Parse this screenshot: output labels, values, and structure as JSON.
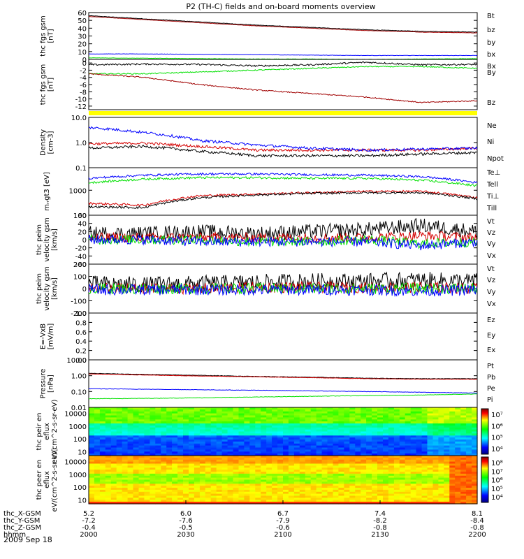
{
  "title": "P2 (TH-C) fields and on-board moments overview",
  "date": "2009 Sep 18",
  "colors": {
    "black": "#000000",
    "red": "#d40000",
    "green": "#00e000",
    "blue": "#0000ff",
    "darkred": "#a00000",
    "yellow": "#ffff00"
  },
  "colorbars": [
    {
      "ticks": [
        "10⁷",
        "10⁶",
        "10⁵",
        "10⁴"
      ]
    },
    {
      "ticks": [
        "10⁸",
        "10⁷",
        "10⁶",
        "10⁵",
        "10⁴"
      ]
    }
  ],
  "orbit": {
    "labels": [
      "thc_X-GSM",
      "thc_Y-GSM",
      "thc_Z-GSM",
      "hhmm"
    ],
    "x": [
      "5.2",
      "6.0",
      "6.7",
      "7.4",
      "8.1"
    ],
    "y": [
      "-7.2",
      "-7.6",
      "-7.9",
      "-8.2",
      "-8.4"
    ],
    "z": [
      "-0.4",
      "-0.5",
      "-0.6",
      "-0.8",
      "-0.8"
    ],
    "hhmm": [
      "2000",
      "2030",
      "2100",
      "2130",
      "2200"
    ]
  },
  "chart_data": [
    {
      "type": "line",
      "ylabel": "thc fgs gsm [nT]",
      "ylim": [
        0,
        60
      ],
      "yticks": [
        "60",
        "50",
        "40",
        "30",
        "20",
        "10",
        "0"
      ],
      "series": [
        {
          "name": "Bt",
          "color": "#000000",
          "values": [
            56,
            52,
            48,
            44,
            41,
            38,
            36,
            35
          ]
        },
        {
          "name": "bz",
          "color": "#a00000",
          "values": [
            55,
            51,
            47,
            43,
            40,
            37,
            35,
            34
          ]
        },
        {
          "name": "by",
          "color": "#00e000",
          "values": [
            2,
            1.5,
            1,
            0.5,
            0.5,
            0,
            0.5,
            1
          ]
        },
        {
          "name": "bx",
          "color": "#0000ff",
          "values": [
            7,
            7,
            6.5,
            6,
            5.5,
            5,
            5,
            5
          ]
        }
      ]
    },
    {
      "type": "line",
      "ylabel": "thc fgs gsm [nT]",
      "ylim": [
        -13,
        1
      ],
      "yticks": [
        "0",
        "-2",
        "-4",
        "-6",
        "-8",
        "-10",
        "-12"
      ],
      "series": [
        {
          "name": "Bx",
          "color": "#000000",
          "values": [
            -0.5,
            -0.3,
            -0.4,
            -0.8,
            -0.5,
            0.2,
            -0.5,
            -0.4
          ]
        },
        {
          "name": "By",
          "color": "#00e000",
          "values": [
            -3,
            -3,
            -2.5,
            -2,
            -1.5,
            -1,
            -1,
            -1.5
          ]
        },
        {
          "name": "Bz",
          "color": "#a00000",
          "values": [
            -3,
            -4,
            -6,
            -7.5,
            -8.5,
            -9.5,
            -11,
            -10.5
          ]
        }
      ]
    },
    {
      "type": "line",
      "ylabel": "Density [cm-3]",
      "log": true,
      "ylim": [
        0.1,
        10
      ],
      "yticks": [
        "10.0",
        "1.0",
        "0.1"
      ],
      "series": [
        {
          "name": "Ne",
          "color": "#d40000",
          "values": [
            0.9,
            0.95,
            0.7,
            0.5,
            0.5,
            0.5,
            0.5,
            0.6
          ]
        },
        {
          "name": "Ni",
          "color": "#000000",
          "values": [
            0.6,
            0.7,
            0.45,
            0.3,
            0.3,
            0.3,
            0.35,
            0.4
          ]
        },
        {
          "name": "Npot",
          "color": "#0000ff",
          "values": [
            4,
            2.5,
            1.2,
            0.8,
            0.6,
            0.5,
            0.55,
            0.6
          ]
        }
      ]
    },
    {
      "type": "line",
      "ylabel": "mᵣᵣgt3 [eV]",
      "log": true,
      "ylim": [
        100,
        8000
      ],
      "yticks": [
        "1000",
        "100"
      ],
      "series": [
        {
          "name": "Te⊥",
          "color": "#d40000",
          "values": [
            300,
            250,
            600,
            700,
            800,
            900,
            900,
            500
          ]
        },
        {
          "name": "Tell",
          "color": "#000000",
          "values": [
            220,
            200,
            500,
            650,
            750,
            800,
            800,
            450
          ]
        },
        {
          "name": "Ti⊥",
          "color": "#0000ff",
          "values": [
            3000,
            4000,
            4500,
            4500,
            4200,
            4000,
            3500,
            2000
          ]
        },
        {
          "name": "Till",
          "color": "#00e000",
          "values": [
            2000,
            2800,
            3200,
            3200,
            3000,
            3000,
            2500,
            1500
          ]
        }
      ]
    },
    {
      "type": "line",
      "ylabel": "thc peim velocity gsm [km/s]",
      "ylim": [
        -60,
        60
      ],
      "yticks": [
        "60",
        "40",
        "20",
        "0",
        "-20",
        "-40",
        "-60"
      ],
      "series": [
        {
          "name": "Vt",
          "color": "#000000",
          "values": [
            15,
            15,
            20,
            15,
            20,
            25,
            35,
            20
          ]
        },
        {
          "name": "Vz",
          "color": "#d40000",
          "values": [
            5,
            5,
            5,
            5,
            5,
            5,
            10,
            5
          ]
        },
        {
          "name": "Vy",
          "color": "#00e000",
          "values": [
            0,
            0,
            0,
            -5,
            -5,
            0,
            -10,
            -5
          ]
        },
        {
          "name": "Vx",
          "color": "#0000ff",
          "values": [
            0,
            0,
            -5,
            -5,
            -5,
            -5,
            -15,
            -5
          ]
        }
      ]
    },
    {
      "type": "line",
      "ylabel": "thc peim velocity gsm [km/s]",
      "ylim": [
        -200,
        200
      ],
      "yticks": [
        "200",
        "100",
        "0",
        "-100",
        "-200"
      ],
      "series": [
        {
          "name": "Vt",
          "color": "#000000",
          "values": [
            40,
            30,
            40,
            50,
            60,
            60,
            70,
            60
          ]
        },
        {
          "name": "Vz",
          "color": "#d40000",
          "values": [
            0,
            0,
            0,
            10,
            10,
            10,
            10,
            0
          ]
        },
        {
          "name": "Vy",
          "color": "#00e000",
          "values": [
            0,
            0,
            0,
            0,
            0,
            0,
            0,
            0
          ]
        },
        {
          "name": "Vx",
          "color": "#0000ff",
          "values": [
            -10,
            -10,
            -10,
            -10,
            -10,
            -10,
            -20,
            -10
          ]
        }
      ]
    },
    {
      "type": "line",
      "ylabel": "E=-VxB [mV/m]",
      "ylim": [
        0,
        1
      ],
      "yticks": [
        "1.0",
        "0.8",
        "0.6",
        "0.4",
        "0.2",
        "0.0"
      ],
      "series": [
        {
          "name": "Ez",
          "color": "#d40000",
          "values": []
        },
        {
          "name": "Ey",
          "color": "#00e000",
          "values": []
        },
        {
          "name": "Ex",
          "color": "#0000ff",
          "values": []
        }
      ]
    },
    {
      "type": "line",
      "ylabel": "Pressure [nPa]",
      "log": true,
      "ylim": [
        0.01,
        10
      ],
      "yticks": [
        "10.00",
        "1.00",
        "0.10",
        "0.01"
      ],
      "series": [
        {
          "name": "Pt",
          "color": "#000000",
          "values": [
            1.4,
            1.2,
            1.05,
            0.9,
            0.8,
            0.7,
            0.65,
            0.65
          ]
        },
        {
          "name": "Pb",
          "color": "#d40000",
          "values": [
            1.3,
            1.1,
            0.95,
            0.85,
            0.75,
            0.65,
            0.6,
            0.6
          ]
        },
        {
          "name": "Pe",
          "color": "#00e000",
          "values": [
            0.035,
            0.037,
            0.04,
            0.045,
            0.05,
            0.055,
            0.06,
            0.07
          ]
        },
        {
          "name": "Pi",
          "color": "#0000ff",
          "values": [
            0.15,
            0.14,
            0.13,
            0.12,
            0.11,
            0.1,
            0.09,
            0.08
          ]
        }
      ]
    },
    {
      "type": "heatmap",
      "ylabel": "thc peir en eflux eV/(cm^2-s-sr-eV)",
      "log": true,
      "ylim": [
        5,
        30000
      ],
      "yticks": [
        "10000",
        "1000",
        "100",
        "10"
      ]
    },
    {
      "type": "heatmap",
      "ylabel": "thc peer en eflux eV/(cm^2-s-sr-eV)",
      "log": true,
      "ylim": [
        5,
        30000
      ],
      "yticks": [
        "10000",
        "1000",
        "100",
        "10"
      ]
    }
  ]
}
